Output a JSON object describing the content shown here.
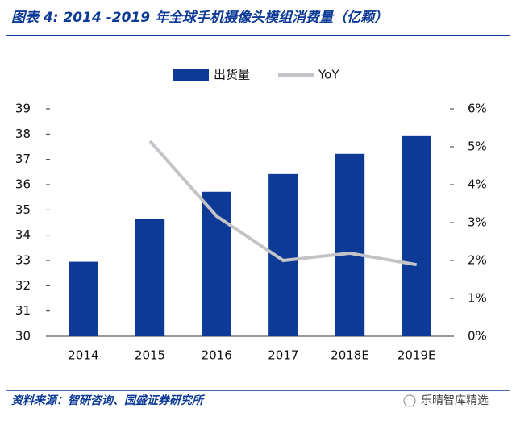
{
  "chart_data": {
    "type": "bar-line",
    "title": "图表 4:  2014 -2019 年全球手机摄像头模组消费量（亿颗）",
    "categories": [
      "2014",
      "2015",
      "2016",
      "2017",
      "2018E",
      "2019E"
    ],
    "series": [
      {
        "name": "出货量",
        "color": "#0d3a96",
        "type": "bar",
        "values": [
          32.95,
          34.65,
          35.72,
          36.42,
          37.22,
          37.92
        ]
      },
      {
        "name": "YoY",
        "color": "#c4c4c8",
        "type": "line",
        "axis": "y2",
        "values": [
          null,
          5.15,
          3.17,
          2.0,
          2.19,
          1.89
        ]
      }
    ],
    "ylim": [
      30,
      39
    ],
    "yticks": [
      30,
      31,
      32,
      33,
      34,
      35,
      36,
      37,
      38,
      39
    ],
    "y2lim": [
      0,
      6
    ],
    "y2ticks": [
      {
        "value": 0,
        "label": "0%"
      },
      {
        "value": 1,
        "label": "1%"
      },
      {
        "value": 2,
        "label": "2%"
      },
      {
        "value": 3,
        "label": "3%"
      },
      {
        "value": 4,
        "label": "4%"
      },
      {
        "value": 5,
        "label": "5%"
      },
      {
        "value": 6,
        "label": "6%"
      }
    ],
    "grid": false,
    "source": "资料来源：智研咨询、国盛证券研究所",
    "watermark": "乐晴智库精选"
  }
}
